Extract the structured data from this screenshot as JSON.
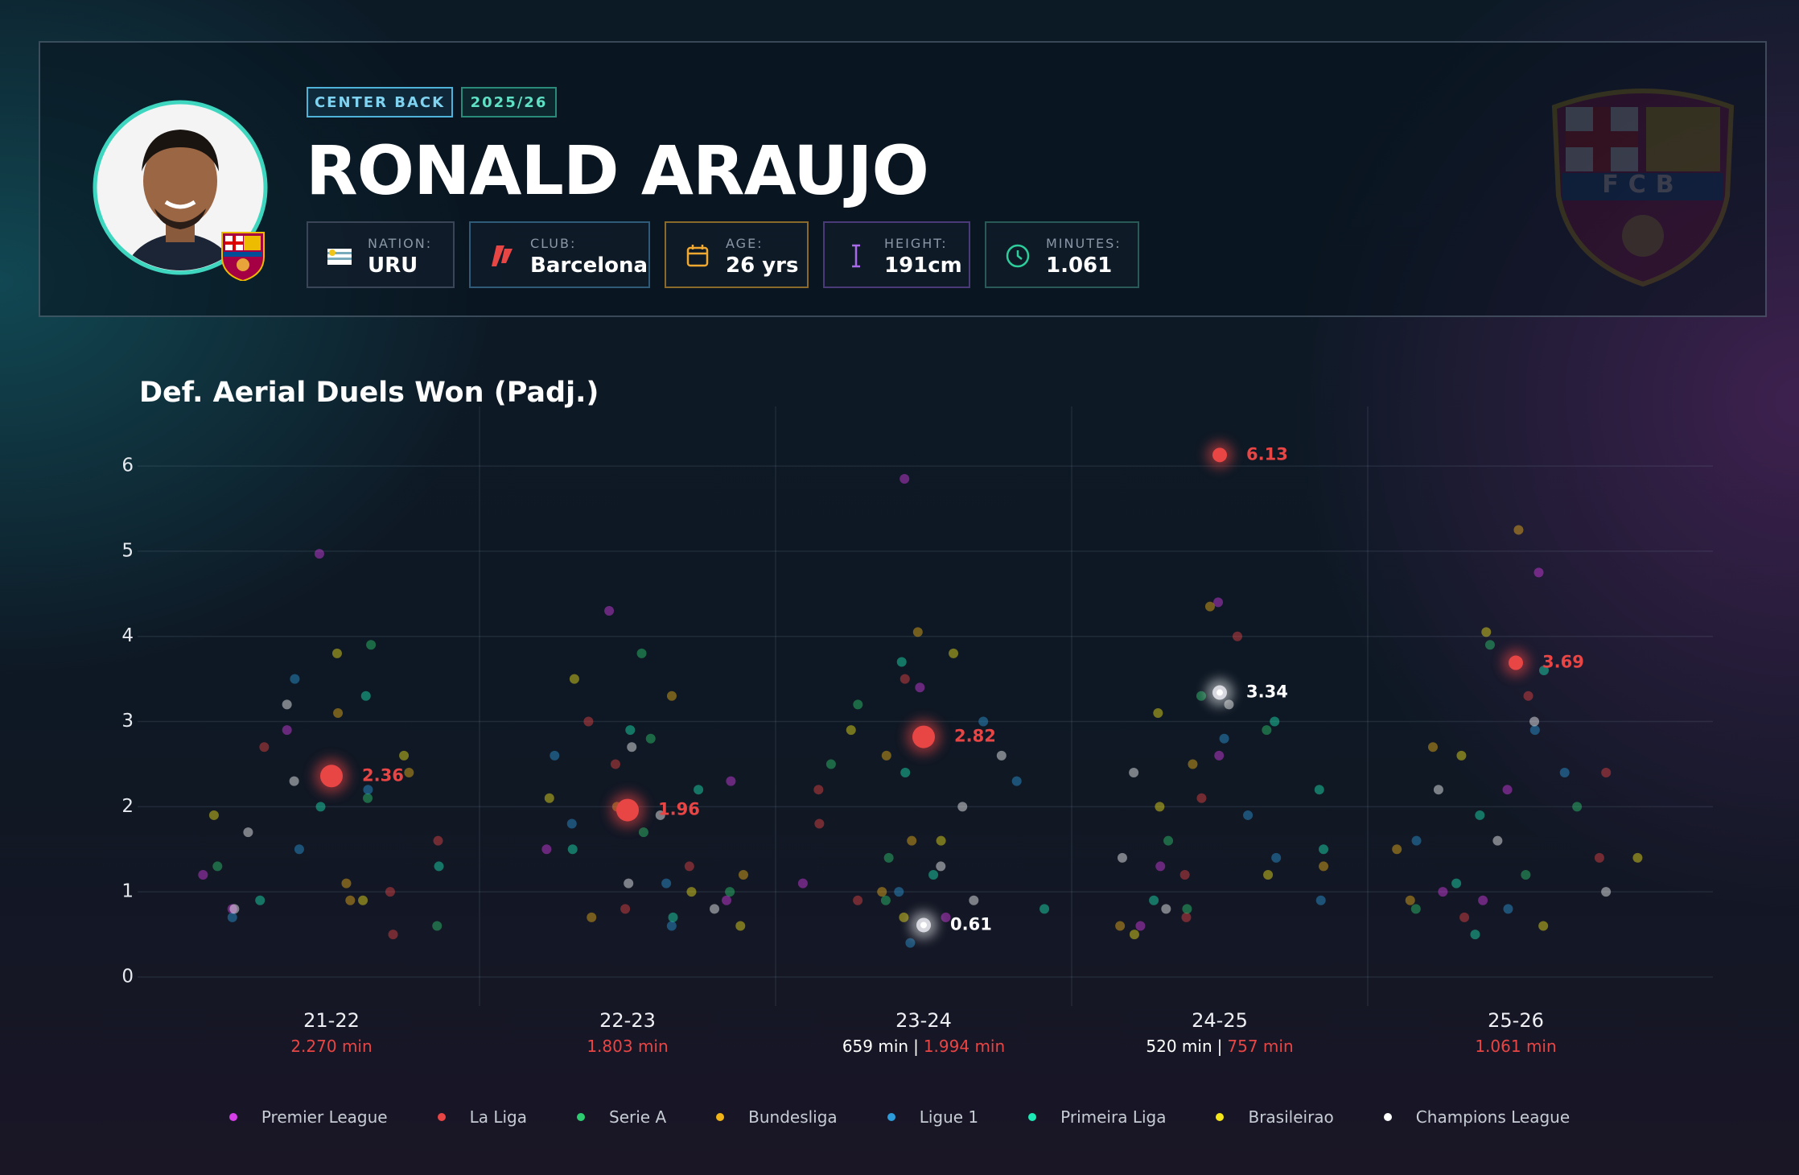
{
  "header": {
    "position": "CENTER BACK",
    "season": "2025/26",
    "name": "RONALD ARAUJO",
    "crest_text": "FCB",
    "stats": [
      {
        "label": "NATION:",
        "value": "URU"
      },
      {
        "label": "CLUB:",
        "value": "Barcelona"
      },
      {
        "label": "AGE:",
        "value": "26 yrs"
      },
      {
        "label": "HEIGHT:",
        "value": "191cm"
      },
      {
        "label": "MINUTES:",
        "value": "1.061"
      }
    ]
  },
  "chart_data": {
    "type": "scatter",
    "title": "Def. Aerial Duels Won (Padj.)",
    "categories": [
      "21-22",
      "22-23",
      "23-24",
      "24-25",
      "25-26"
    ],
    "minutes": [
      {
        "ucl": null,
        "league": "2.270 min"
      },
      {
        "ucl": null,
        "league": "1.803 min"
      },
      {
        "ucl": "659 min",
        "league": "1.994 min"
      },
      {
        "ucl": "520 min",
        "league": "757 min"
      },
      {
        "ucl": null,
        "league": "1.061 min"
      }
    ],
    "minutes_separator": "|",
    "ylim": [
      0,
      6.7
    ],
    "yticks": [
      0,
      1,
      2,
      3,
      4,
      5,
      6
    ],
    "grid": true,
    "series": [
      {
        "name": "Premier League",
        "color": "#d63ee8",
        "values": [
          [
            1.2,
            2.9,
            0.8,
            4.97
          ],
          [
            1.5,
            2.3,
            0.9,
            4.3
          ],
          [
            1.1,
            3.4,
            0.7,
            5.85
          ],
          [
            1.3,
            2.6,
            0.6,
            4.4
          ],
          [
            1.0,
            2.2,
            4.75,
            0.9
          ]
        ]
      },
      {
        "name": "La Liga",
        "color": "#e84545",
        "values": [
          [
            1.6,
            1.0,
            2.7,
            0.5
          ],
          [
            1.3,
            2.5,
            0.8,
            3.0
          ],
          [
            1.8,
            0.9,
            3.5,
            2.2
          ],
          [
            2.1,
            1.2,
            0.7,
            4.0
          ],
          [
            1.4,
            2.4,
            0.7,
            3.3
          ]
        ],
        "player_values": [
          2.36,
          1.96,
          2.82,
          6.13,
          3.69
        ]
      },
      {
        "name": "Serie A",
        "color": "#2ecc71",
        "values": [
          [
            1.3,
            3.9,
            2.1,
            0.6
          ],
          [
            1.7,
            2.8,
            1.0,
            3.8
          ],
          [
            1.4,
            2.5,
            0.9,
            3.2
          ],
          [
            1.6,
            2.9,
            0.8,
            3.3
          ],
          [
            1.2,
            2.0,
            0.8,
            3.9
          ]
        ]
      },
      {
        "name": "Bundesliga",
        "color": "#f0b419",
        "values": [
          [
            1.1,
            2.4,
            0.9,
            3.1
          ],
          [
            2.0,
            1.2,
            3.3,
            0.7
          ],
          [
            1.0,
            2.6,
            4.05,
            1.6
          ],
          [
            1.3,
            2.5,
            0.6,
            4.35
          ],
          [
            1.5,
            0.9,
            2.7,
            5.25
          ]
        ]
      },
      {
        "name": "Ligue 1",
        "color": "#2d9cdb",
        "values": [
          [
            1.5,
            0.7,
            2.2,
            3.5
          ],
          [
            1.8,
            1.1,
            2.6,
            0.6
          ],
          [
            2.3,
            1.0,
            0.4,
            3.0
          ],
          [
            1.9,
            0.9,
            2.8,
            1.4
          ],
          [
            1.6,
            0.8,
            2.4,
            2.9
          ]
        ]
      },
      {
        "name": "Primeira Liga",
        "color": "#1de9b6",
        "values": [
          [
            2.0,
            1.3,
            3.3,
            0.9
          ],
          [
            2.2,
            0.7,
            1.5,
            2.9
          ],
          [
            1.2,
            2.4,
            0.8,
            3.7
          ],
          [
            1.5,
            2.2,
            0.9,
            3.0
          ],
          [
            1.1,
            1.9,
            3.6,
            0.5
          ]
        ]
      },
      {
        "name": "Brasileirao",
        "color": "#f5e61a",
        "values": [
          [
            0.9,
            1.9,
            2.6,
            3.8
          ],
          [
            1.0,
            2.1,
            0.6,
            3.5
          ],
          [
            1.6,
            2.9,
            0.7,
            3.8
          ],
          [
            1.2,
            2.0,
            3.1,
            0.5
          ],
          [
            1.4,
            2.6,
            0.6,
            4.05
          ]
        ]
      },
      {
        "name": "Champions League",
        "color": "#ffffff",
        "values": [
          [
            1.7,
            0.8,
            2.3,
            3.2
          ],
          [
            1.1,
            1.9,
            2.7,
            0.8
          ],
          [
            1.3,
            2.0,
            0.9,
            2.6
          ],
          [
            1.4,
            2.4,
            0.8,
            3.2
          ],
          [
            1.6,
            2.2,
            1.0,
            3.0
          ]
        ],
        "player_values": [
          null,
          null,
          0.61,
          3.34,
          null
        ]
      }
    ]
  }
}
